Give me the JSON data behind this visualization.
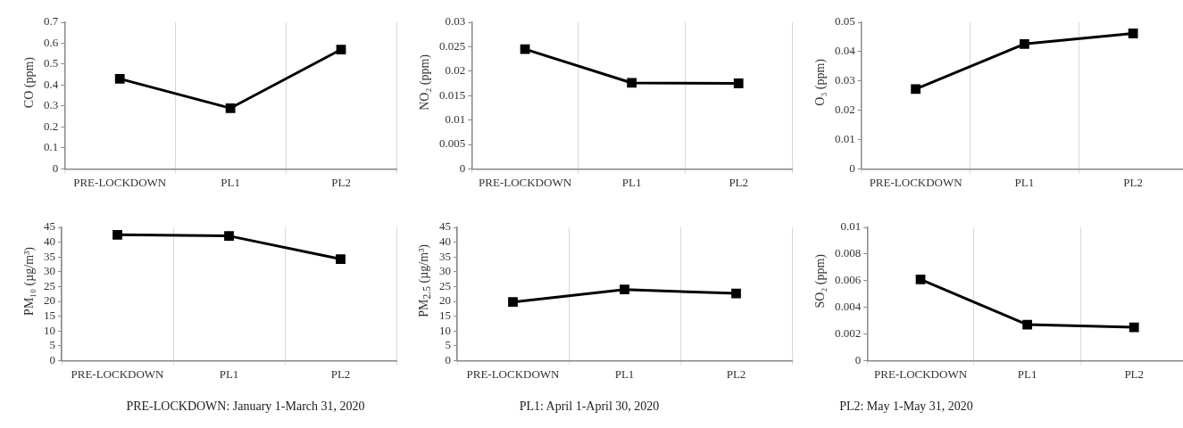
{
  "chart_data": [
    {
      "type": "line",
      "ylabel": "CO (ppm)",
      "categories": [
        "PRE-LOCKDOWN",
        "PL1",
        "PL2"
      ],
      "values": [
        0.43,
        0.29,
        0.57
      ],
      "color": "#000000",
      "ylim": [
        0,
        0.7
      ],
      "yticks": [
        0,
        0.1,
        0.2,
        0.3,
        0.4,
        0.5,
        0.6,
        0.7
      ],
      "grid": "x",
      "marker": "square",
      "line_style": "solid"
    },
    {
      "type": "line",
      "ylabel": "NO₂ (ppm)",
      "categories": [
        "PRE-LOCKDOWN",
        "PL1",
        "PL2"
      ],
      "values": [
        0.0245,
        0.0176,
        0.0175
      ],
      "color": "#000000",
      "ylim": [
        0,
        0.03
      ],
      "yticks": [
        0,
        0.005,
        0.01,
        0.015,
        0.02,
        0.025,
        0.03
      ],
      "grid": "x",
      "marker": "square",
      "line_style": "solid"
    },
    {
      "type": "line",
      "ylabel": "O₃ (ppm)",
      "categories": [
        "PRE-LOCKDOWN",
        "PL1",
        "PL2"
      ],
      "values": [
        0.0272,
        0.0426,
        0.0462
      ],
      "color": "#000000",
      "ylim": [
        0,
        0.05
      ],
      "yticks": [
        0,
        0.01,
        0.02,
        0.03,
        0.04,
        0.05
      ],
      "grid": "x",
      "marker": "square",
      "line_style": "solid"
    },
    {
      "type": "line",
      "ylabel": "PM₁₀ (µg/m³)",
      "categories": [
        "PRE-LOCKDOWN",
        "PL1",
        "PL2"
      ],
      "values": [
        42.5,
        42.1,
        34.3
      ],
      "color": "#000000",
      "ylim": [
        0,
        45
      ],
      "yticks": [
        0,
        5,
        10,
        15,
        20,
        25,
        30,
        35,
        40,
        45
      ],
      "grid": "x",
      "marker": "square",
      "line_style": "solid"
    },
    {
      "type": "line",
      "ylabel": "PM$_{2.5}$ (µg/m³)",
      "categories": [
        "PRE-LOCKDOWN",
        "PL1",
        "PL2"
      ],
      "values": [
        19.8,
        24.0,
        22.7
      ],
      "color": "#000000",
      "ylim": [
        0,
        45
      ],
      "yticks": [
        0,
        5,
        10,
        15,
        20,
        25,
        30,
        35,
        40,
        45
      ],
      "grid": "x",
      "marker": "square",
      "line_style": "solid"
    },
    {
      "type": "line",
      "ylabel": "SO₂ (ppm)",
      "categories": [
        "PRE-LOCKDOWN",
        "PL1",
        "PL2"
      ],
      "values": [
        0.0061,
        0.0027,
        0.0025
      ],
      "color": "#000000",
      "ylim": [
        0,
        0.01
      ],
      "yticks": [
        0,
        0.002,
        0.004,
        0.006,
        0.008,
        0.01
      ],
      "grid": "x",
      "marker": "square",
      "line_style": "solid"
    },
    {
      "type": "other",
      "annotations": [
        "PRE-LOCKDOWN: January 1-March 31, 2020",
        "PL1: April 1-April 30, 2020",
        "PL2: May 1-May 31, 2020"
      ]
    }
  ]
}
